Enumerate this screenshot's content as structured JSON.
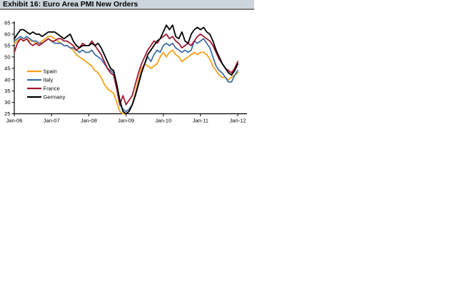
{
  "title_bar": {
    "title": "Exhibit 16: Euro Area PMI New Orders",
    "bg_color": "#ccd5dd",
    "border_color": "#808080"
  },
  "chart_data": {
    "type": "line",
    "title": "Exhibit 16: Euro Area PMI New Orders",
    "xlabel": "",
    "ylabel": "",
    "ylim": [
      25,
      65
    ],
    "y_ticks": [
      25,
      30,
      35,
      40,
      45,
      50,
      55,
      60,
      65
    ],
    "x_tick_labels": [
      "Jan-06",
      "Jan-07",
      "Jan-08",
      "Jan-09",
      "Jan-10",
      "Jan-11",
      "Jan-12"
    ],
    "x_start": "Jan-06",
    "x_end": "Jan-12",
    "x_frequency": "monthly",
    "grid": false,
    "legend_position": "left-middle-inside",
    "series": [
      {
        "name": "Spain",
        "color": "#F6A01A",
        "values": [
          56,
          57,
          58,
          57,
          58,
          57,
          57,
          56,
          56,
          57,
          58,
          59,
          59,
          58,
          57,
          56,
          55,
          55,
          54,
          53,
          51,
          50,
          49,
          48,
          47,
          46,
          44,
          43,
          41,
          38,
          36,
          35,
          34,
          30,
          26,
          25,
          25,
          26,
          29,
          34,
          40,
          45,
          47,
          46,
          45,
          46,
          47,
          50,
          52,
          50,
          52,
          53,
          51,
          50,
          48,
          49,
          50,
          51,
          52,
          51,
          52,
          52,
          51,
          49,
          46,
          44,
          42,
          41,
          41,
          40,
          41,
          42,
          43
        ]
      },
      {
        "name": "Italy",
        "color": "#3F6FA6",
        "values": [
          57,
          58,
          59,
          58,
          59,
          58,
          57,
          57,
          56,
          56,
          57,
          58,
          57,
          56,
          56,
          56,
          55,
          55,
          54,
          54,
          53,
          52,
          53,
          52,
          52,
          53,
          51,
          50,
          49,
          47,
          45,
          44,
          43,
          36,
          29,
          27,
          26,
          27,
          29,
          33,
          38,
          43,
          47,
          50,
          48,
          51,
          53,
          52,
          55,
          56,
          55,
          56,
          54,
          53,
          52,
          53,
          52,
          53,
          57,
          56,
          57,
          58,
          56,
          54,
          50,
          46,
          44,
          43,
          41,
          39,
          39,
          42,
          44
        ]
      },
      {
        "name": "France",
        "color": "#A01931",
        "values": [
          52,
          56,
          58,
          57,
          58,
          56,
          55,
          56,
          55,
          56,
          57,
          58,
          57,
          57,
          58,
          58,
          57,
          57,
          56,
          55,
          53,
          54,
          56,
          55,
          55,
          57,
          55,
          53,
          51,
          48,
          45,
          43,
          42,
          36,
          29,
          33,
          29,
          31,
          33,
          38,
          43,
          47,
          50,
          53,
          55,
          57,
          56,
          58,
          59,
          60,
          58,
          59,
          57,
          56,
          54,
          55,
          56,
          55,
          57,
          59,
          60,
          59,
          58,
          57,
          55,
          52,
          49,
          47,
          45,
          44,
          43,
          45,
          48
        ]
      },
      {
        "name": "Germany",
        "color": "#000000",
        "values": [
          58,
          60,
          62,
          62,
          61,
          60,
          61,
          60,
          60,
          59,
          60,
          61,
          61,
          61,
          60,
          59,
          58,
          59,
          60,
          57,
          55,
          54,
          55,
          55,
          55,
          56,
          55,
          56,
          54,
          51,
          48,
          45,
          44,
          38,
          31,
          26,
          25,
          26,
          29,
          33,
          38,
          43,
          47,
          51,
          53,
          55,
          57,
          58,
          61,
          64,
          62,
          64,
          59,
          58,
          61,
          57,
          56,
          60,
          62,
          63,
          62,
          63,
          61,
          60,
          57,
          53,
          50,
          47,
          45,
          43,
          42,
          44,
          47
        ]
      }
    ]
  }
}
